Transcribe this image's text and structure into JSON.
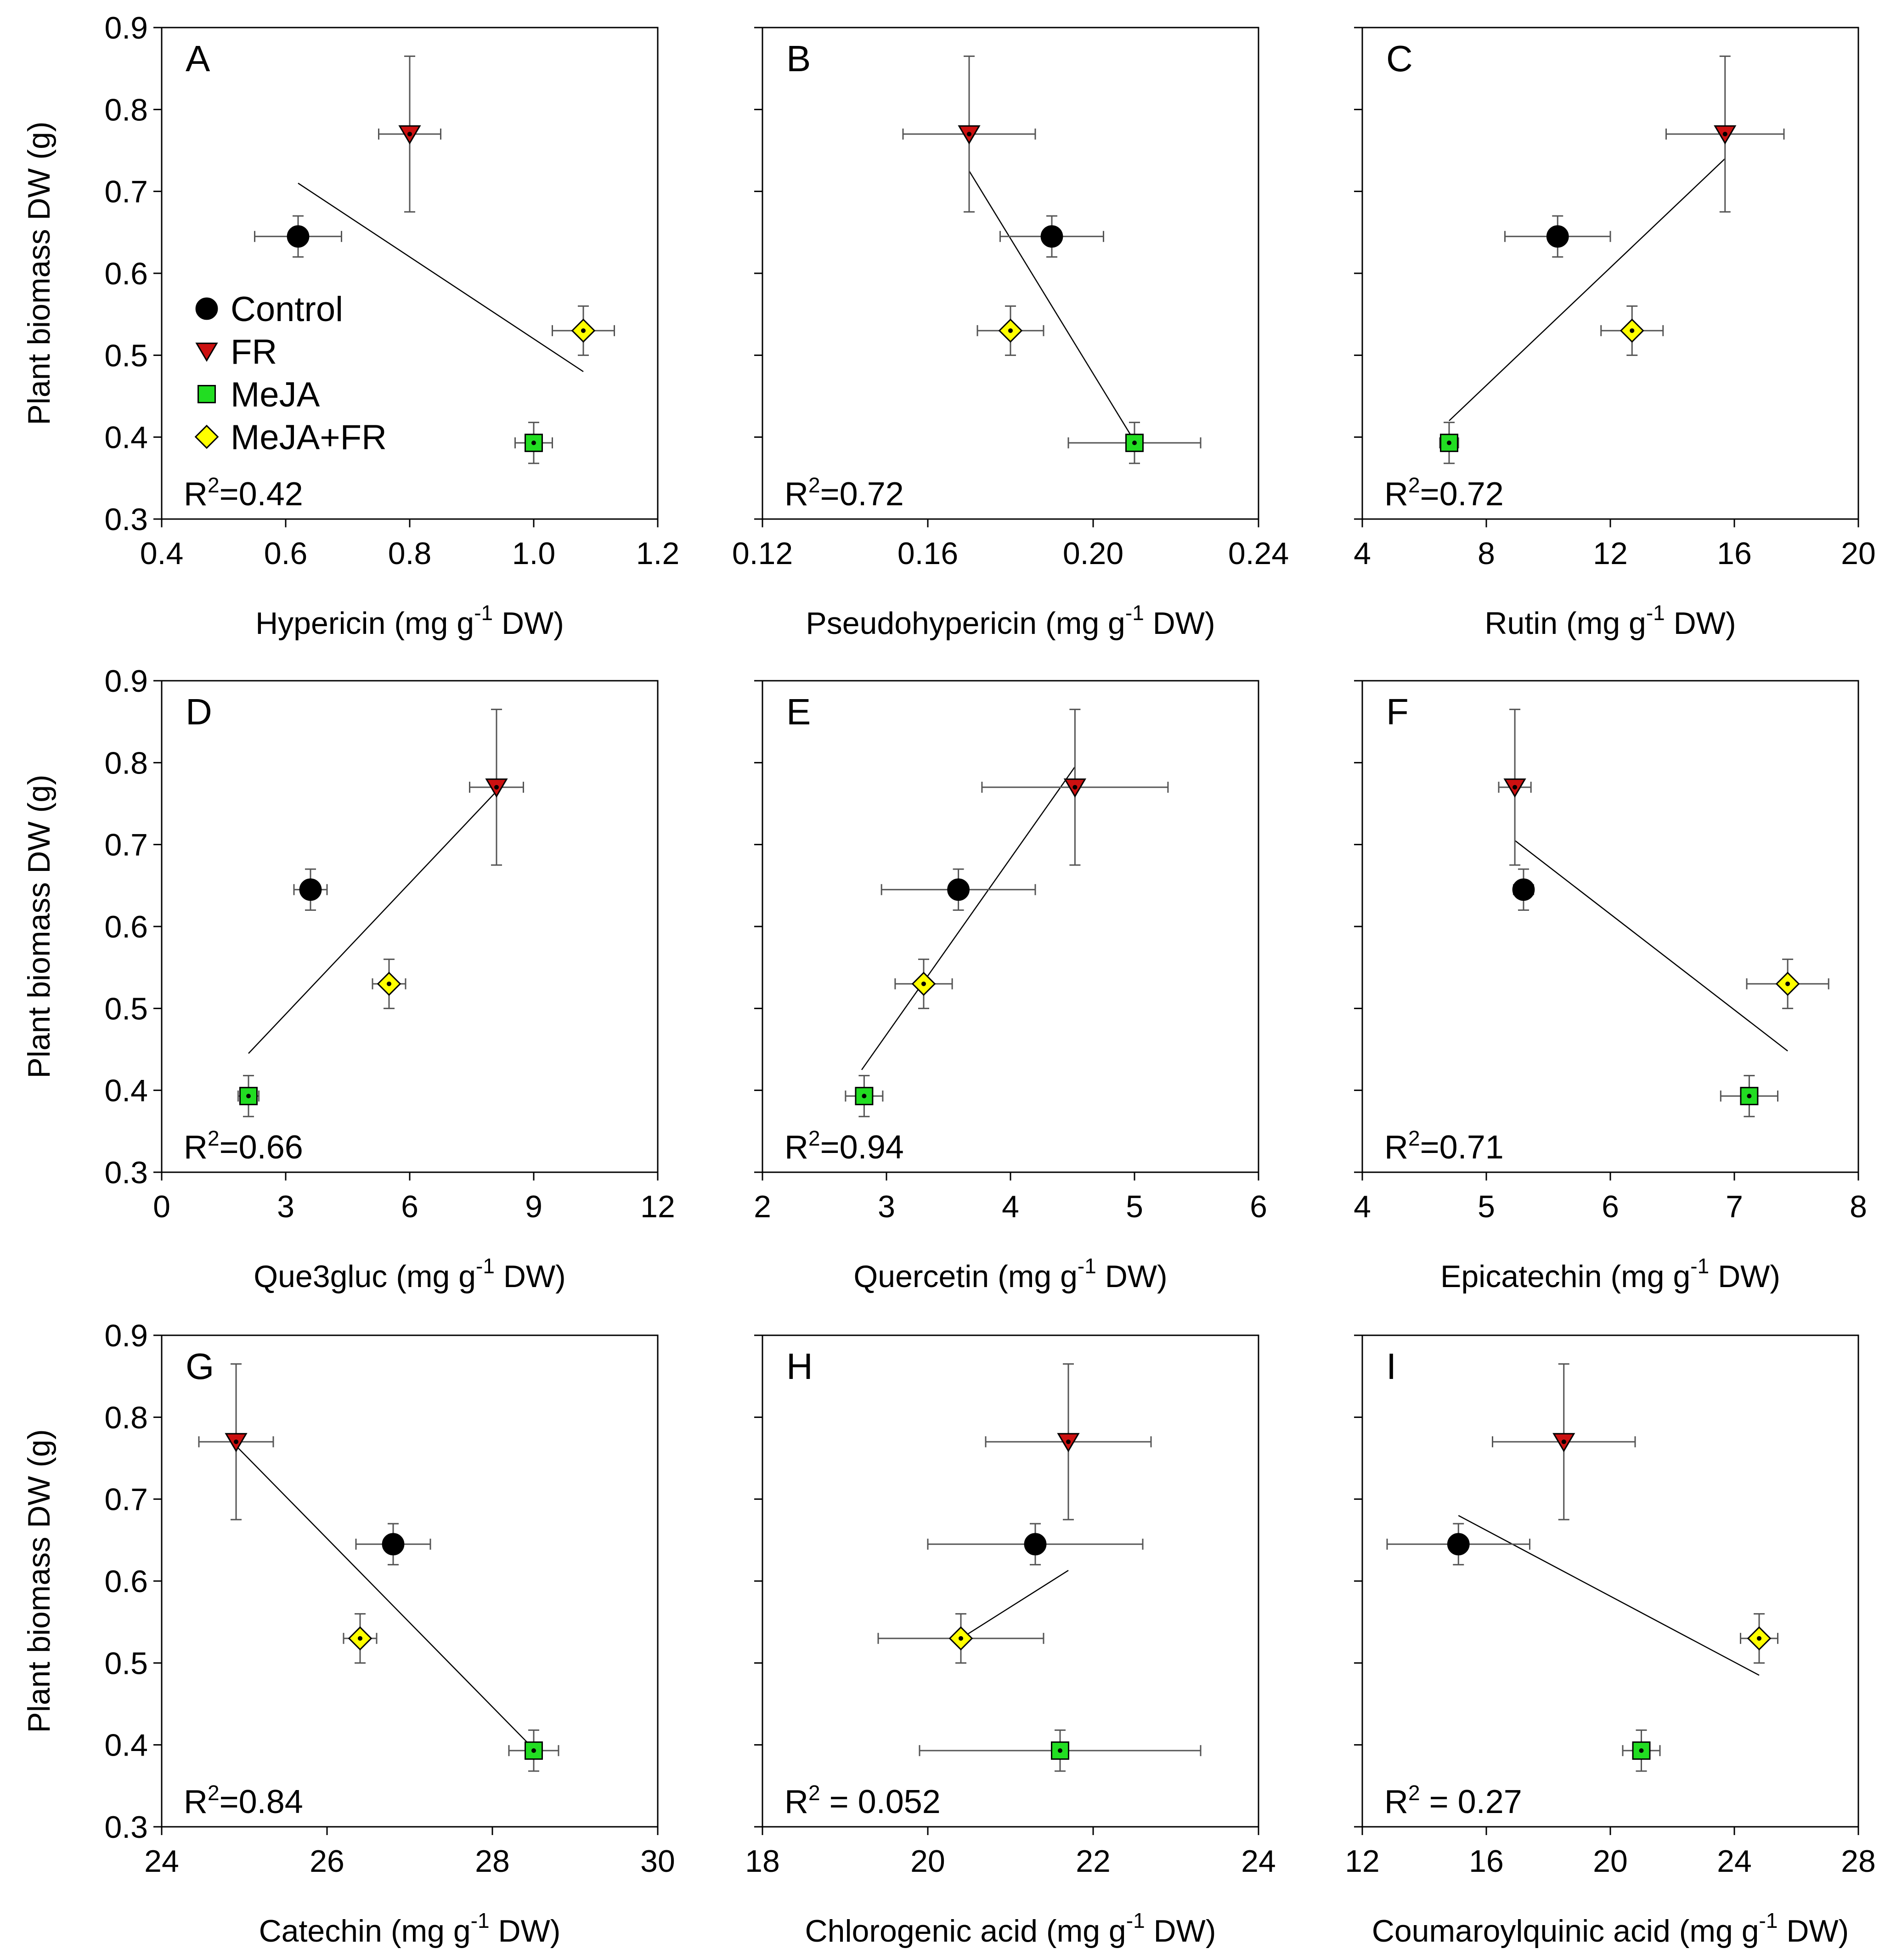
{
  "ylabel": "Plant biomass DW (g)",
  "ylim": [
    0.3,
    0.9
  ],
  "yticks": [
    "0.3",
    "0.4",
    "0.5",
    "0.6",
    "0.7",
    "0.8",
    "0.9"
  ],
  "legend": [
    {
      "key": "control",
      "label": "Control",
      "color": "#000000",
      "marker": "circle"
    },
    {
      "key": "fr",
      "label": "FR",
      "color": "#cc1111",
      "marker": "triangle-down"
    },
    {
      "key": "meja",
      "label": "MeJA",
      "color": "#22dd22",
      "marker": "square"
    },
    {
      "key": "mejafr",
      "label": "MeJA+FR",
      "color": "#ffff00",
      "marker": "diamond"
    }
  ],
  "chart_data": [
    {
      "type": "scatter",
      "panel": "A",
      "xlabel_main": "Hypericin (mg g",
      "xlabel_sup": "-1",
      "xlabel_tail": " DW)",
      "xlim": [
        0.4,
        1.2
      ],
      "xticks": [
        "0.4",
        "0.6",
        "0.8",
        "1.0",
        "1.2"
      ],
      "r2_prefix": "R",
      "r2_sup": "2",
      "r2_value": "=0.42",
      "points": {
        "control": [
          0.62,
          0.645,
          0.07,
          0.025
        ],
        "fr": [
          0.8,
          0.77,
          0.05,
          0.095
        ],
        "meja": [
          1.0,
          0.393,
          0.03,
          0.025
        ],
        "mejafr": [
          1.08,
          0.53,
          0.05,
          0.03
        ]
      },
      "fit": [
        [
          0.62,
          0.71
        ],
        [
          1.08,
          0.48
        ]
      ]
    },
    {
      "type": "scatter",
      "panel": "B",
      "xlabel_main": "Pseudohypericin (mg g",
      "xlabel_sup": "-1",
      "xlabel_tail": " DW)",
      "xlim": [
        0.12,
        0.24
      ],
      "xticks": [
        "0.12",
        "0.16",
        "0.20",
        "0.24"
      ],
      "r2_prefix": "R",
      "r2_sup": "2",
      "r2_value": "=0.72",
      "points": {
        "control": [
          0.19,
          0.645,
          0.0125,
          0.025
        ],
        "fr": [
          0.17,
          0.77,
          0.016,
          0.095
        ],
        "meja": [
          0.21,
          0.393,
          0.016,
          0.025
        ],
        "mejafr": [
          0.18,
          0.53,
          0.008,
          0.03
        ]
      },
      "fit": [
        [
          0.17,
          0.725
        ],
        [
          0.21,
          0.395
        ]
      ]
    },
    {
      "type": "scatter",
      "panel": "C",
      "xlabel_main": "Rutin (mg g",
      "xlabel_sup": "-1",
      "xlabel_tail": " DW)",
      "xlim": [
        4,
        20
      ],
      "xticks": [
        "4",
        "8",
        "12",
        "16",
        "20"
      ],
      "r2_prefix": "R",
      "r2_sup": "2",
      "r2_value": "=0.72",
      "points": {
        "control": [
          10.3,
          0.645,
          1.7,
          0.025
        ],
        "fr": [
          15.7,
          0.77,
          1.9,
          0.095
        ],
        "meja": [
          6.8,
          0.393,
          0.3,
          0.025
        ],
        "mejafr": [
          12.7,
          0.53,
          1.0,
          0.03
        ]
      },
      "fit": [
        [
          6.8,
          0.42
        ],
        [
          15.7,
          0.74
        ]
      ]
    },
    {
      "type": "scatter",
      "panel": "D",
      "xlabel_main": "Que3gluc (mg g",
      "xlabel_sup": "-1",
      "xlabel_tail": " DW)",
      "xlim": [
        0,
        12
      ],
      "xticks": [
        "0",
        "3",
        "6",
        "9",
        "12"
      ],
      "r2_prefix": "R",
      "r2_sup": "2",
      "r2_value": "=0.66",
      "points": {
        "control": [
          3.6,
          0.645,
          0.4,
          0.025
        ],
        "fr": [
          8.1,
          0.77,
          0.65,
          0.095
        ],
        "meja": [
          2.1,
          0.393,
          0.25,
          0.025
        ],
        "mejafr": [
          5.5,
          0.53,
          0.4,
          0.03
        ]
      },
      "fit": [
        [
          2.1,
          0.445
        ],
        [
          8.1,
          0.765
        ]
      ]
    },
    {
      "type": "scatter",
      "panel": "E",
      "xlabel_main": "Quercetin (mg g",
      "xlabel_sup": "-1",
      "xlabel_tail": " DW)",
      "xlim": [
        2,
        6
      ],
      "xticks": [
        "2",
        "3",
        "4",
        "5",
        "6"
      ],
      "r2_prefix": "R",
      "r2_sup": "2",
      "r2_value": "=0.94",
      "points": {
        "control": [
          3.58,
          0.645,
          0.62,
          0.025
        ],
        "fr": [
          4.52,
          0.77,
          0.75,
          0.095
        ],
        "meja": [
          2.82,
          0.393,
          0.15,
          0.025
        ],
        "mejafr": [
          3.3,
          0.53,
          0.23,
          0.03
        ]
      },
      "fit": [
        [
          2.8,
          0.425
        ],
        [
          4.52,
          0.795
        ]
      ]
    },
    {
      "type": "scatter",
      "panel": "F",
      "xlabel_main": "Epicatechin (mg g",
      "xlabel_sup": "-1",
      "xlabel_tail": " DW)",
      "xlim": [
        4,
        8
      ],
      "xticks": [
        "4",
        "5",
        "6",
        "7",
        "8"
      ],
      "r2_prefix": "R",
      "r2_sup": "2",
      "r2_value": "=0.71",
      "points": {
        "control": [
          5.3,
          0.645,
          0.08,
          0.025
        ],
        "fr": [
          5.23,
          0.77,
          0.13,
          0.095
        ],
        "meja": [
          7.12,
          0.393,
          0.23,
          0.025
        ],
        "mejafr": [
          7.43,
          0.53,
          0.33,
          0.03
        ]
      },
      "fit": [
        [
          5.23,
          0.705
        ],
        [
          7.43,
          0.448
        ]
      ]
    },
    {
      "type": "scatter",
      "panel": "G",
      "xlabel_main": "Catechin (mg g",
      "xlabel_sup": "-1",
      "xlabel_tail": " DW)",
      "xlim": [
        24,
        30
      ],
      "xticks": [
        "24",
        "26",
        "28",
        "30"
      ],
      "r2_prefix": "R",
      "r2_sup": "2",
      "r2_value": "=0.84",
      "points": {
        "control": [
          26.8,
          0.645,
          0.45,
          0.025
        ],
        "fr": [
          24.9,
          0.77,
          0.45,
          0.095
        ],
        "meja": [
          28.5,
          0.393,
          0.3,
          0.025
        ],
        "mejafr": [
          26.4,
          0.53,
          0.2,
          0.03
        ]
      },
      "fit": [
        [
          24.9,
          0.765
        ],
        [
          28.5,
          0.395
        ]
      ]
    },
    {
      "type": "scatter",
      "panel": "H",
      "xlabel_main": "Chlorogenic acid (mg g",
      "xlabel_sup": "-1",
      "xlabel_tail": " DW)",
      "xlim": [
        18,
        24
      ],
      "xticks": [
        "18",
        "20",
        "22",
        "24"
      ],
      "r2_prefix": "R",
      "r2_sup": "2",
      "r2_value": " = 0.052",
      "points": {
        "control": [
          21.3,
          0.645,
          1.3,
          0.025
        ],
        "fr": [
          21.7,
          0.77,
          1.0,
          0.095
        ],
        "meja": [
          21.6,
          0.393,
          1.7,
          0.025
        ],
        "mejafr": [
          20.4,
          0.53,
          1.0,
          0.03
        ]
      },
      "fit": [
        [
          20.4,
          0.53
        ],
        [
          21.7,
          0.613
        ]
      ]
    },
    {
      "type": "scatter",
      "panel": "I",
      "xlabel_main": "Coumaroylquinic acid (mg g",
      "xlabel_sup": "-1",
      "xlabel_tail": " DW)",
      "xlim": [
        12,
        28
      ],
      "xticks": [
        "12",
        "16",
        "20",
        "24",
        "28"
      ],
      "r2_prefix": "R",
      "r2_sup": "2",
      "r2_value": " = 0.27",
      "points": {
        "control": [
          15.1,
          0.645,
          2.3,
          0.025
        ],
        "fr": [
          18.5,
          0.77,
          2.3,
          0.095
        ],
        "meja": [
          21.0,
          0.393,
          0.6,
          0.025
        ],
        "mejafr": [
          24.8,
          0.53,
          0.6,
          0.03
        ]
      },
      "fit": [
        [
          15.1,
          0.68
        ],
        [
          24.8,
          0.485
        ]
      ]
    }
  ]
}
